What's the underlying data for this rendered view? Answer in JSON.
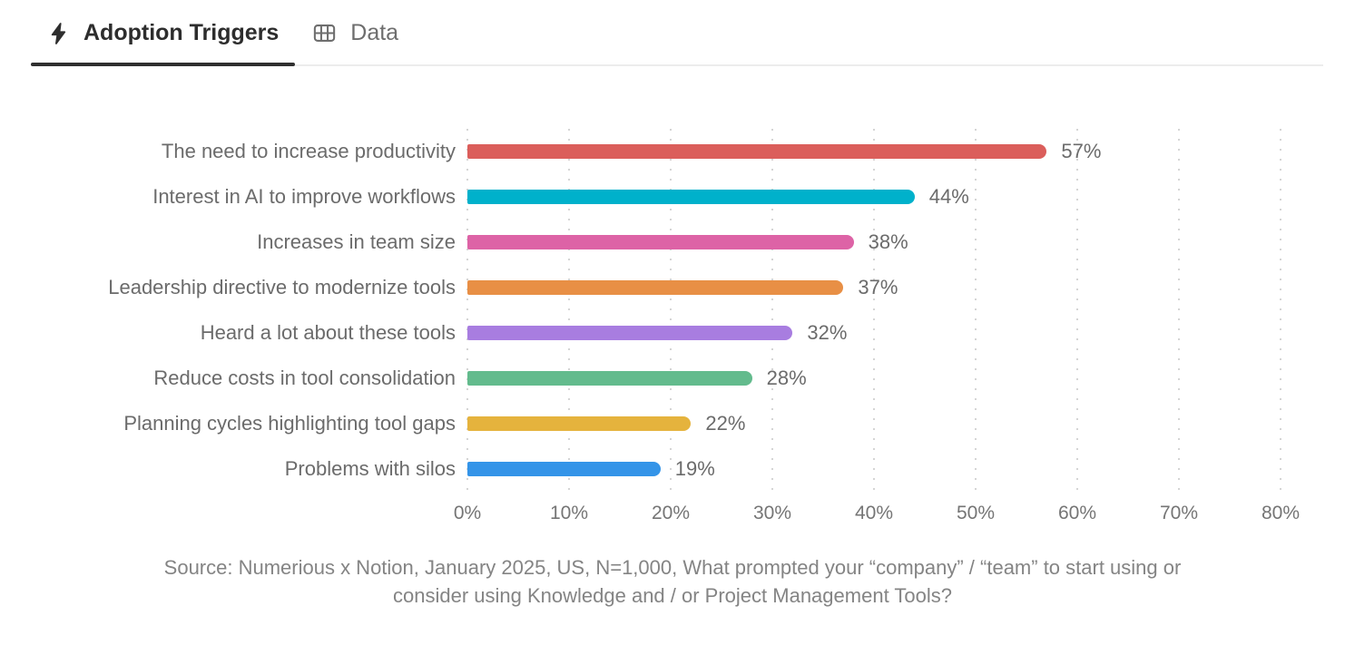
{
  "tabs": [
    {
      "label": "Adoption Triggers",
      "icon": "bolt-icon",
      "active": true
    },
    {
      "label": "Data",
      "icon": "table-icon",
      "active": false
    }
  ],
  "chart_data": {
    "type": "bar",
    "orientation": "horizontal",
    "title": "Adoption Triggers",
    "categories": [
      "The need to increase productivity",
      "Interest in AI to improve workflows",
      "Increases in team size",
      "Leadership directive to modernize tools",
      "Heard a lot about these tools",
      "Reduce costs in tool consolidation",
      "Planning cycles highlighting tool gaps",
      "Problems with silos"
    ],
    "values": [
      57,
      44,
      38,
      37,
      32,
      28,
      22,
      19
    ],
    "value_labels": [
      "57%",
      "44%",
      "38%",
      "37%",
      "32%",
      "28%",
      "22%",
      "19%"
    ],
    "bar_colors": [
      "#DB5E5B",
      "#00B1CB",
      "#DD63A6",
      "#E88F45",
      "#A87DE0",
      "#63BB8D",
      "#E5B33D",
      "#3494E8"
    ],
    "xlim": [
      0,
      80
    ],
    "x_ticks": [
      "0%",
      "10%",
      "20%",
      "30%",
      "40%",
      "50%",
      "60%",
      "70%",
      "80%"
    ],
    "xlabel": "",
    "ylabel": "",
    "grid": "dotted-vertical",
    "legend": "none"
  },
  "source": {
    "line1": "Source: Numerious x Notion, January 2025, US, N=1,000, What prompted your “company” / “team” to start using or",
    "line2": "consider using Knowledge and / or Project Management Tools?"
  }
}
